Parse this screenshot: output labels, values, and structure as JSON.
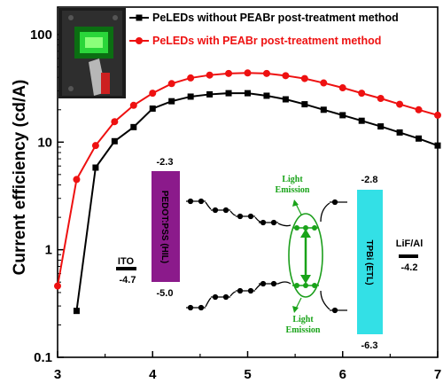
{
  "chart_data": {
    "type": "line",
    "title": "",
    "xlabel": "",
    "ylabel": "Current efficiency (cd/A)",
    "yscale": "log",
    "xlim": [
      3,
      7
    ],
    "ylim": [
      0.1,
      180
    ],
    "x_ticks": [
      "3",
      "4",
      "5",
      "6",
      "7"
    ],
    "y_ticks": [
      "0.1",
      "1",
      "10",
      "100"
    ],
    "legend_position": "top-right",
    "series": [
      {
        "name": "PeLEDs without PEABr post-treatment method",
        "color": "#000000",
        "marker": "square",
        "x": [
          3.2,
          3.4,
          3.6,
          3.8,
          4.0,
          4.2,
          4.4,
          4.6,
          4.8,
          5.0,
          5.2,
          5.4,
          5.6,
          5.8,
          6.0,
          6.2,
          6.4,
          6.6,
          6.8,
          7.0
        ],
        "y": [
          0.27,
          5.8,
          10.2,
          13.8,
          20.5,
          24.0,
          26.5,
          27.8,
          28.5,
          28.5,
          27.0,
          25.0,
          22.5,
          20.0,
          17.8,
          15.8,
          14.0,
          12.3,
          10.8,
          9.3
        ]
      },
      {
        "name": "PeLEDs with PEABr post-treatment method",
        "color": "#ee1111",
        "marker": "circle",
        "x": [
          3.0,
          3.2,
          3.4,
          3.6,
          3.8,
          4.0,
          4.2,
          4.4,
          4.6,
          4.8,
          5.0,
          5.2,
          5.4,
          5.6,
          5.8,
          6.0,
          6.2,
          6.4,
          6.6,
          6.8,
          7.0
        ],
        "y": [
          0.46,
          4.5,
          9.3,
          15.5,
          22.0,
          28.5,
          35.0,
          39.5,
          42.0,
          43.5,
          44.0,
          43.5,
          41.5,
          39.0,
          35.5,
          32.0,
          28.5,
          25.5,
          22.5,
          20.0,
          17.8
        ]
      }
    ]
  },
  "inset_diagram": {
    "layers": [
      {
        "label": "ITO",
        "value": "-4.7",
        "color": "#000000"
      },
      {
        "label": "PEDOT:PSS (HIL)",
        "top": "-2.3",
        "bottom": "-5.0",
        "color": "#8b1a8b"
      },
      {
        "label": "TPBi (ETL)",
        "top": "-2.8",
        "bottom": "-6.3",
        "color": "#33e0e6"
      },
      {
        "label": "LiF/Al",
        "value": "-4.2",
        "color": "#000000"
      }
    ],
    "emission_label": "Light Emission"
  },
  "photo_inset": {
    "description_icon": "device-photo-icon"
  }
}
